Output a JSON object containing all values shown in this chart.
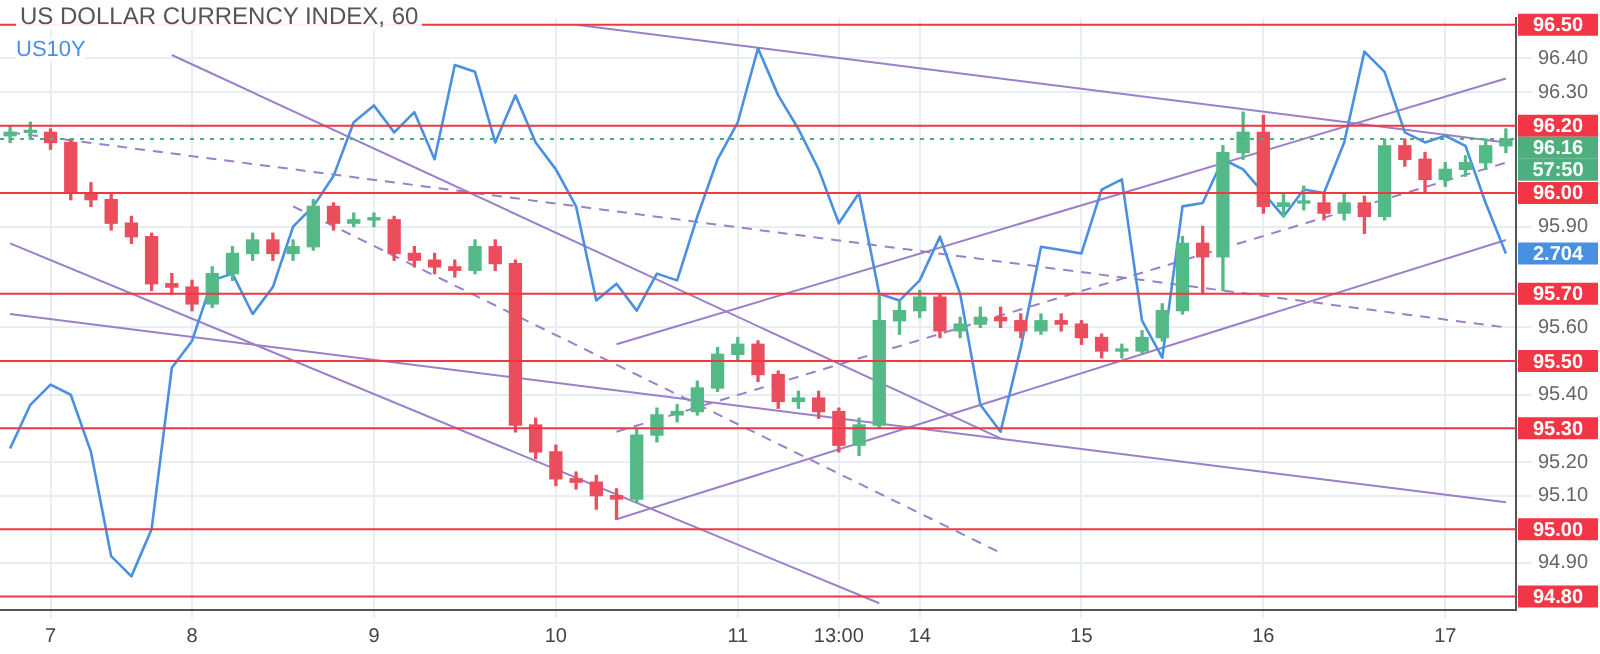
{
  "chart_data": {
    "type": "candlestick",
    "title": "US DOLLAR CURRENCY INDEX, 60",
    "categories": [
      null,
      null,
      "7",
      null,
      null,
      null,
      null,
      null,
      null,
      "8",
      null,
      null,
      null,
      null,
      null,
      null,
      null,
      null,
      "9",
      null,
      null,
      null,
      null,
      null,
      null,
      null,
      null,
      "10",
      null,
      null,
      null,
      null,
      null,
      null,
      null,
      null,
      "11",
      null,
      null,
      null,
      null,
      "13:00",
      null,
      null,
      null,
      "14",
      null,
      null,
      null,
      null,
      null,
      null,
      null,
      "15",
      null,
      null,
      null,
      null,
      null,
      null,
      null,
      null,
      "16",
      null,
      null,
      null,
      null,
      null,
      null,
      null,
      null,
      "17",
      null,
      null,
      null
    ],
    "ohlc": [
      [
        96.17,
        96.2,
        96.15,
        96.18
      ],
      [
        96.18,
        96.21,
        96.16,
        96.18
      ],
      [
        96.18,
        96.19,
        96.13,
        96.15
      ],
      [
        96.15,
        96.16,
        95.98,
        96.0
      ],
      [
        96.0,
        96.03,
        95.96,
        95.98
      ],
      [
        95.98,
        96.0,
        95.89,
        95.91
      ],
      [
        95.91,
        95.93,
        95.85,
        95.87
      ],
      [
        95.87,
        95.88,
        95.71,
        95.73
      ],
      [
        95.73,
        95.76,
        95.7,
        95.72
      ],
      [
        95.72,
        95.74,
        95.65,
        95.67
      ],
      [
        95.67,
        95.78,
        95.66,
        95.76
      ],
      [
        95.76,
        95.84,
        95.74,
        95.82
      ],
      [
        95.82,
        95.88,
        95.8,
        95.86
      ],
      [
        95.86,
        95.88,
        95.8,
        95.82
      ],
      [
        95.82,
        95.86,
        95.8,
        95.84
      ],
      [
        95.84,
        95.98,
        95.83,
        95.96
      ],
      [
        95.96,
        95.97,
        95.89,
        95.91
      ],
      [
        95.91,
        95.94,
        95.9,
        95.92
      ],
      [
        95.92,
        95.94,
        95.9,
        95.92
      ],
      [
        95.92,
        95.93,
        95.8,
        95.82
      ],
      [
        95.82,
        95.84,
        95.78,
        95.8
      ],
      [
        95.8,
        95.82,
        95.76,
        95.78
      ],
      [
        95.78,
        95.8,
        95.75,
        95.77
      ],
      [
        95.77,
        95.86,
        95.76,
        95.84
      ],
      [
        95.84,
        95.86,
        95.77,
        95.79
      ],
      [
        95.79,
        95.8,
        95.29,
        95.31
      ],
      [
        95.31,
        95.33,
        95.21,
        95.23
      ],
      [
        95.23,
        95.25,
        95.13,
        95.15
      ],
      [
        95.15,
        95.17,
        95.12,
        95.14
      ],
      [
        95.14,
        95.16,
        95.06,
        95.1
      ],
      [
        95.1,
        95.12,
        95.03,
        95.09
      ],
      [
        95.09,
        95.3,
        95.08,
        95.28
      ],
      [
        95.28,
        95.36,
        95.26,
        95.34
      ],
      [
        95.34,
        95.37,
        95.32,
        95.35
      ],
      [
        95.35,
        95.44,
        95.34,
        95.42
      ],
      [
        95.42,
        95.54,
        95.41,
        95.52
      ],
      [
        95.52,
        95.57,
        95.5,
        95.55
      ],
      [
        95.55,
        95.56,
        95.44,
        95.46
      ],
      [
        95.46,
        95.47,
        95.36,
        95.38
      ],
      [
        95.38,
        95.41,
        95.36,
        95.39
      ],
      [
        95.39,
        95.41,
        95.33,
        95.35
      ],
      [
        95.35,
        95.36,
        95.23,
        95.25
      ],
      [
        95.25,
        95.33,
        95.22,
        95.31
      ],
      [
        95.31,
        95.7,
        95.3,
        95.62
      ],
      [
        95.62,
        95.68,
        95.58,
        95.65
      ],
      [
        95.65,
        95.71,
        95.63,
        95.69
      ],
      [
        95.69,
        95.7,
        95.57,
        95.59
      ],
      [
        95.59,
        95.63,
        95.57,
        95.61
      ],
      [
        95.61,
        95.66,
        95.6,
        95.63
      ],
      [
        95.63,
        95.66,
        95.6,
        95.62
      ],
      [
        95.62,
        95.64,
        95.57,
        95.59
      ],
      [
        95.59,
        95.64,
        95.58,
        95.62
      ],
      [
        95.62,
        95.64,
        95.59,
        95.61
      ],
      [
        95.61,
        95.62,
        95.55,
        95.57
      ],
      [
        95.57,
        95.58,
        95.51,
        95.53
      ],
      [
        95.53,
        95.55,
        95.51,
        95.53
      ],
      [
        95.53,
        95.59,
        95.52,
        95.57
      ],
      [
        95.57,
        95.67,
        95.56,
        95.65
      ],
      [
        95.65,
        95.87,
        95.64,
        95.85
      ],
      [
        95.85,
        95.9,
        95.7,
        95.81
      ],
      [
        95.81,
        96.14,
        95.71,
        96.12
      ],
      [
        96.12,
        96.24,
        96.1,
        96.18
      ],
      [
        96.18,
        96.23,
        95.94,
        95.96
      ],
      [
        95.96,
        96.0,
        95.93,
        95.97
      ],
      [
        95.97,
        96.02,
        95.95,
        95.97
      ],
      [
        95.97,
        96.0,
        95.92,
        95.94
      ],
      [
        95.94,
        96.0,
        95.92,
        95.97
      ],
      [
        95.97,
        95.99,
        95.88,
        95.93
      ],
      [
        95.93,
        96.16,
        95.92,
        96.14
      ],
      [
        96.14,
        96.16,
        96.08,
        96.1
      ],
      [
        96.1,
        96.12,
        96.0,
        96.04
      ],
      [
        96.04,
        96.09,
        96.02,
        96.07
      ],
      [
        96.07,
        96.11,
        96.05,
        96.09
      ],
      [
        96.09,
        96.16,
        96.07,
        96.14
      ],
      [
        96.14,
        96.19,
        96.12,
        96.16
      ]
    ],
    "colors": [
      "#53b987",
      "#53b987",
      "#eb4d5c",
      "#eb4d5c",
      "#eb4d5c",
      "#eb4d5c",
      "#eb4d5c",
      "#eb4d5c",
      "#eb4d5c",
      "#eb4d5c",
      "#53b987",
      "#53b987",
      "#53b987",
      "#eb4d5c",
      "#53b987",
      "#53b987",
      "#eb4d5c",
      "#53b987",
      "#53b987",
      "#eb4d5c",
      "#eb4d5c",
      "#eb4d5c",
      "#eb4d5c",
      "#53b987",
      "#eb4d5c",
      "#eb4d5c",
      "#eb4d5c",
      "#eb4d5c",
      "#eb4d5c",
      "#eb4d5c",
      "#eb4d5c",
      "#53b987",
      "#53b987",
      "#53b987",
      "#53b987",
      "#53b987",
      "#53b987",
      "#eb4d5c",
      "#eb4d5c",
      "#53b987",
      "#eb4d5c",
      "#eb4d5c",
      "#53b987",
      "#53b987",
      "#53b987",
      "#53b987",
      "#eb4d5c",
      "#53b987",
      "#53b987",
      "#eb4d5c",
      "#eb4d5c",
      "#53b987",
      "#eb4d5c",
      "#eb4d5c",
      "#eb4d5c",
      "#53b987",
      "#53b987",
      "#53b987",
      "#53b987",
      "#eb4d5c",
      "#53b987",
      "#53b987",
      "#eb4d5c",
      "#53b987",
      "#53b987",
      "#eb4d5c",
      "#53b987",
      "#eb4d5c",
      "#53b987",
      "#eb4d5c",
      "#eb4d5c",
      "#53b987",
      "#53b987",
      "#53b987",
      "#53b987"
    ],
    "series": [
      {
        "name": "US10Y",
        "type": "line",
        "color": "#4a90e2",
        "values": [
          95.24,
          95.37,
          95.43,
          95.4,
          95.23,
          94.92,
          94.86,
          95.0,
          95.48,
          95.56,
          95.74,
          95.76,
          95.64,
          95.72,
          95.9,
          95.96,
          96.05,
          96.21,
          96.26,
          96.18,
          96.24,
          96.1,
          96.38,
          96.36,
          96.15,
          96.29,
          96.15,
          96.07,
          95.96,
          95.68,
          95.73,
          95.65,
          95.76,
          95.74,
          95.93,
          96.1,
          96.21,
          96.43,
          96.29,
          96.19,
          96.07,
          95.91,
          96.0,
          95.7,
          95.68,
          95.74,
          95.87,
          95.7,
          95.37,
          95.29,
          95.54,
          95.84,
          95.83,
          95.82,
          96.01,
          96.04,
          95.62,
          95.51,
          95.96,
          95.97,
          96.1,
          96.07,
          96.0,
          95.93,
          96.01,
          96.0,
          96.15,
          96.42,
          96.36,
          96.18,
          96.15,
          96.17,
          96.14,
          95.97,
          95.82
        ]
      },
      {
        "type": "line",
        "color": "#9c7fc9",
        "values": [
          null,
          null,
          null,
          null,
          null,
          null,
          null,
          null,
          null,
          null,
          null,
          null,
          null,
          null,
          null,
          null,
          null,
          null,
          null,
          null,
          null,
          null,
          null,
          null,
          null,
          null,
          null,
          null,
          96.5,
          null,
          null,
          null,
          null,
          null,
          null,
          null,
          null,
          null,
          null,
          null,
          null,
          null,
          null,
          null,
          null,
          null,
          null,
          null,
          null,
          null,
          null,
          null,
          null,
          null,
          null,
          null,
          null,
          null,
          null,
          null,
          null,
          null,
          null,
          null,
          null,
          null,
          null,
          null,
          null,
          null,
          null,
          null,
          null,
          null,
          96.15
        ]
      },
      {
        "type": "line",
        "color": "#9c7fc9",
        "line_style": "dashed",
        "values": [
          96.18,
          null,
          null,
          null,
          null,
          null,
          null,
          null,
          null,
          null,
          null,
          null,
          null,
          null,
          null,
          null,
          null,
          null,
          null,
          null,
          null,
          null,
          null,
          null,
          null,
          null,
          null,
          null,
          null,
          null,
          null,
          null,
          null,
          null,
          null,
          null,
          null,
          null,
          null,
          null,
          null,
          null,
          null,
          null,
          null,
          null,
          null,
          null,
          null,
          null,
          null,
          null,
          null,
          null,
          null,
          null,
          null,
          null,
          null,
          null,
          null,
          null,
          null,
          null,
          null,
          null,
          null,
          null,
          null,
          null,
          null,
          null,
          null,
          null,
          95.6
        ]
      },
      {
        "type": "line",
        "color": "#9c7fc9",
        "values": [
          95.64,
          null,
          null,
          null,
          null,
          null,
          null,
          null,
          null,
          null,
          null,
          null,
          null,
          null,
          null,
          null,
          null,
          null,
          null,
          null,
          null,
          null,
          null,
          null,
          null,
          null,
          null,
          null,
          null,
          null,
          null,
          null,
          null,
          null,
          null,
          null,
          null,
          null,
          null,
          null,
          null,
          null,
          null,
          null,
          null,
          null,
          null,
          null,
          null,
          null,
          null,
          null,
          null,
          null,
          null,
          null,
          null,
          null,
          null,
          null,
          null,
          null,
          null,
          null,
          null,
          null,
          null,
          null,
          null,
          null,
          null,
          null,
          null,
          null,
          95.08
        ]
      },
      {
        "type": "line",
        "color": "#9c7fc9",
        "values": [
          null,
          null,
          null,
          null,
          null,
          null,
          null,
          null,
          96.41,
          null,
          null,
          null,
          null,
          null,
          null,
          null,
          null,
          null,
          null,
          null,
          null,
          null,
          null,
          null,
          null,
          null,
          null,
          null,
          null,
          null,
          null,
          null,
          null,
          null,
          null,
          null,
          null,
          null,
          null,
          null,
          null,
          null,
          null,
          null,
          null,
          null,
          null,
          null,
          null,
          95.27,
          null,
          null,
          null,
          null,
          null,
          null,
          null,
          null,
          null,
          null,
          null,
          null,
          null,
          null,
          null,
          null,
          null,
          null,
          null,
          null,
          null,
          null,
          null,
          null,
          null
        ]
      },
      {
        "type": "line",
        "color": "#9c7fc9",
        "line_style": "dashed",
        "values": [
          null,
          null,
          null,
          null,
          null,
          null,
          null,
          null,
          null,
          null,
          null,
          null,
          null,
          null,
          95.96,
          null,
          null,
          null,
          null,
          null,
          null,
          null,
          null,
          null,
          null,
          null,
          null,
          null,
          null,
          null,
          null,
          null,
          null,
          null,
          null,
          null,
          null,
          null,
          null,
          null,
          null,
          null,
          null,
          null,
          null,
          null,
          null,
          null,
          null,
          94.93,
          null,
          null,
          null,
          null,
          null,
          null,
          null,
          null,
          null,
          null,
          null,
          null,
          null,
          null,
          null,
          null,
          null,
          null,
          null,
          null,
          null,
          null,
          null,
          null,
          null
        ]
      },
      {
        "type": "line",
        "color": "#9c7fc9",
        "values": [
          95.85,
          null,
          null,
          null,
          null,
          null,
          null,
          null,
          null,
          null,
          null,
          null,
          null,
          null,
          null,
          null,
          null,
          null,
          null,
          null,
          null,
          null,
          null,
          null,
          null,
          null,
          null,
          null,
          null,
          null,
          null,
          null,
          null,
          null,
          null,
          null,
          null,
          null,
          null,
          null,
          null,
          null,
          null,
          94.78,
          null,
          null,
          null,
          null,
          null,
          null,
          null,
          null,
          null,
          null,
          null,
          null,
          null,
          null,
          null,
          null,
          null,
          null,
          null,
          null,
          null,
          null,
          null,
          null,
          null,
          null,
          null,
          null,
          null,
          null,
          null
        ]
      },
      {
        "type": "line",
        "color": "#9c7fc9",
        "values": [
          null,
          null,
          null,
          null,
          null,
          null,
          null,
          null,
          null,
          null,
          null,
          null,
          null,
          null,
          null,
          null,
          null,
          null,
          null,
          null,
          null,
          null,
          null,
          null,
          null,
          null,
          null,
          null,
          null,
          null,
          95.55,
          null,
          null,
          null,
          null,
          null,
          null,
          null,
          null,
          null,
          null,
          null,
          null,
          null,
          null,
          null,
          null,
          null,
          null,
          null,
          null,
          null,
          null,
          null,
          null,
          null,
          null,
          null,
          null,
          null,
          null,
          null,
          null,
          null,
          null,
          null,
          null,
          null,
          null,
          null,
          null,
          null,
          null,
          null,
          96.34
        ]
      },
      {
        "type": "line",
        "color": "#9c7fc9",
        "line_style": "dashed",
        "values": [
          null,
          null,
          null,
          null,
          null,
          null,
          null,
          null,
          null,
          null,
          null,
          null,
          null,
          null,
          null,
          null,
          null,
          null,
          null,
          null,
          null,
          null,
          null,
          null,
          null,
          null,
          null,
          null,
          null,
          null,
          95.29,
          null,
          null,
          null,
          null,
          null,
          null,
          null,
          null,
          null,
          null,
          null,
          null,
          null,
          null,
          null,
          null,
          null,
          null,
          null,
          null,
          null,
          null,
          null,
          null,
          null,
          null,
          null,
          null,
          null,
          null,
          null,
          null,
          null,
          null,
          null,
          null,
          null,
          null,
          null,
          null,
          null,
          null,
          null,
          96.09
        ]
      },
      {
        "type": "line",
        "color": "#9c7fc9",
        "values": [
          null,
          null,
          null,
          null,
          null,
          null,
          null,
          null,
          null,
          null,
          null,
          null,
          null,
          null,
          null,
          null,
          null,
          null,
          null,
          null,
          null,
          null,
          null,
          null,
          null,
          null,
          null,
          null,
          null,
          null,
          95.03,
          null,
          null,
          null,
          null,
          null,
          null,
          null,
          null,
          null,
          null,
          null,
          null,
          null,
          null,
          null,
          null,
          null,
          null,
          null,
          null,
          null,
          null,
          null,
          null,
          null,
          null,
          null,
          null,
          null,
          null,
          null,
          null,
          null,
          null,
          null,
          null,
          null,
          null,
          null,
          null,
          null,
          null,
          null,
          95.86
        ]
      }
    ],
    "ylim": [
      94.76,
      96.52
    ],
    "yticks": [
      {
        "value": 96.4,
        "label": "96.40"
      },
      {
        "value": 96.3,
        "label": "96.30"
      },
      {
        "value": 95.9,
        "label": "95.90"
      },
      {
        "value": 95.6,
        "label": "95.60"
      },
      {
        "value": 95.4,
        "label": "95.40"
      },
      {
        "value": 95.2,
        "label": "95.20"
      },
      {
        "value": 95.1,
        "label": "95.10"
      },
      {
        "value": 94.9,
        "label": "94.90"
      }
    ],
    "ref_lines": [
      {
        "axis": "y",
        "value": 96.5,
        "label": "96.50",
        "color": "#f23645"
      },
      {
        "axis": "y",
        "value": 96.2,
        "label": "96.20",
        "color": "#f23645"
      },
      {
        "axis": "y",
        "value": 96.0,
        "label": "96.00",
        "color": "#f23645"
      },
      {
        "axis": "y",
        "value": 95.7,
        "label": "95.70",
        "color": "#f23645"
      },
      {
        "axis": "y",
        "value": 95.5,
        "label": "95.50",
        "color": "#f23645"
      },
      {
        "axis": "y",
        "value": 95.3,
        "label": "95.30",
        "color": "#f23645"
      },
      {
        "axis": "y",
        "value": 95.0,
        "label": "95.00",
        "color": "#f23645"
      },
      {
        "axis": "y",
        "value": 94.8,
        "label": "94.80",
        "color": "#f23645"
      },
      {
        "axis": "y",
        "value": 96.16,
        "label": "96.16",
        "color": "#4caf7d",
        "line_style": "dotted"
      }
    ],
    "annotations": [
      "57:50",
      "2.704"
    ],
    "grid": true,
    "legend": "top left",
    "marker": "none",
    "line_style": "solid"
  }
}
